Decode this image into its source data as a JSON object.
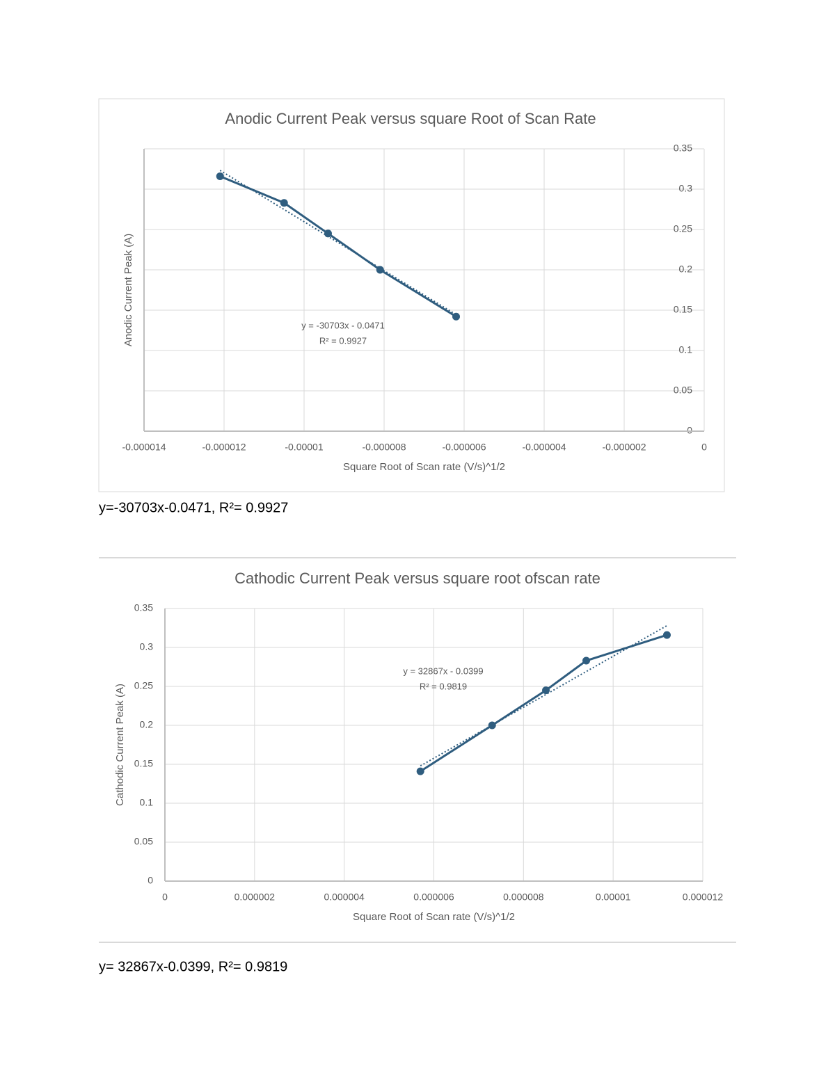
{
  "chart_data": [
    {
      "type": "scatter",
      "title": "Anodic Current Peak versus square Root of Scan Rate",
      "x_label": "Square Root of Scan rate (V/s)^1/2",
      "y_label": "Anodic Current Peak (A)",
      "xlim": [
        -1.4e-05,
        0
      ],
      "xticks": [
        -1.4e-05,
        -1.2e-05,
        -1e-05,
        -8e-06,
        -6e-06,
        -4e-06,
        -2e-06,
        0
      ],
      "ylim": [
        0,
        0.35
      ],
      "yticks": [
        0,
        0.05,
        0.1,
        0.15,
        0.2,
        0.25,
        0.3,
        0.35
      ],
      "y_axis_side": "right",
      "grid": true,
      "trendline": true,
      "trendline_label": [
        "y = -30703x - 0.0471",
        "R² = 0.9927"
      ],
      "series": [
        {
          "color": "#2f5d7f",
          "x": [
            -1.21e-05,
            -1.05e-05,
            -9.4e-06,
            -8.1e-06,
            -6.2e-06
          ],
          "values": [
            0.316,
            0.283,
            0.245,
            0.2,
            0.142
          ]
        }
      ]
    },
    {
      "type": "scatter",
      "title": "Cathodic Current Peak  versus square root ofscan rate",
      "x_label": "Square Root of Scan rate (V/s)^1/2",
      "y_label": "Cathodic Current Peak (A)",
      "xlim": [
        0,
        1.2e-05
      ],
      "xticks": [
        0,
        2e-06,
        4e-06,
        6e-06,
        8e-06,
        1e-05,
        1.2e-05
      ],
      "ylim": [
        0,
        0.35
      ],
      "yticks": [
        0,
        0.05,
        0.1,
        0.15,
        0.2,
        0.25,
        0.3,
        0.35
      ],
      "y_axis_side": "left",
      "grid": true,
      "trendline": true,
      "trendline_label": [
        "y = 32867x - 0.0399",
        "R² = 0.9819"
      ],
      "series": [
        {
          "color": "#2f5d7f",
          "x": [
            5.7e-06,
            7.3e-06,
            8.5e-06,
            9.4e-06,
            1.12e-05
          ],
          "values": [
            0.141,
            0.2,
            0.245,
            0.283,
            0.316
          ]
        }
      ]
    }
  ],
  "captions": [
    "y=-30703x-0.0471, R²= 0.9927",
    "y= 32867x-0.0399, R²= 0.9819"
  ]
}
